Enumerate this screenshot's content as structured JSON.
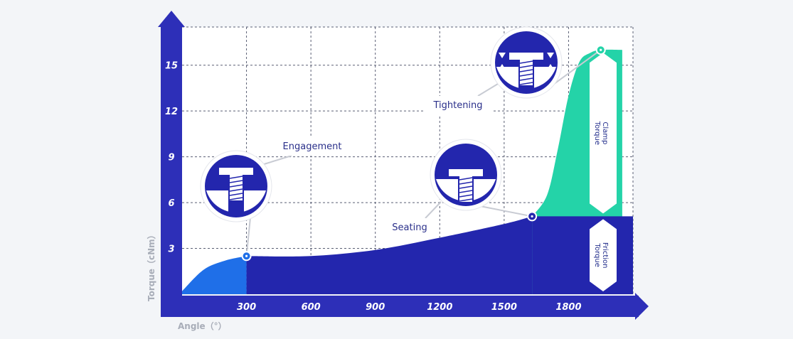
{
  "chart_data": {
    "type": "area",
    "xlabel": "Angle（°）",
    "ylabel": "Torque（cNm）",
    "x_ticks": [
      300,
      600,
      900,
      1200,
      1500,
      1800
    ],
    "y_ticks": [
      3,
      6,
      9,
      12,
      15
    ],
    "xlim": [
      0,
      2100
    ],
    "ylim": [
      0,
      17.5
    ],
    "grid": true,
    "series": [
      {
        "values_x": [
          0,
          100,
          200,
          300
        ],
        "values_y": [
          0.2,
          1.6,
          2.2,
          2.5
        ]
      },
      {
        "values_x": [
          300,
          600,
          900,
          1200,
          1500,
          1630
        ],
        "values_y": [
          2.5,
          2.5,
          2.9,
          3.7,
          4.6,
          5.1
        ]
      },
      {
        "values_x": [
          1630,
          1700,
          1750,
          1800,
          1850,
          1900,
          1950,
          2050
        ],
        "values_y": [
          5.1,
          6.5,
          9.5,
          13.0,
          15.2,
          15.8,
          16.0,
          16.0
        ]
      }
    ],
    "markers": [
      {
        "x": 300,
        "y": 2.5
      },
      {
        "x": 1630,
        "y": 5.1
      },
      {
        "x": 1950,
        "y": 16.0
      }
    ],
    "annotations": [
      {
        "label": "Engagement",
        "x": 300,
        "y": 2.5
      },
      {
        "label": "Seating",
        "x": 1630,
        "y": 5.1
      },
      {
        "label": "Tightening",
        "x": 1950,
        "y": 16.0
      }
    ],
    "bands": [
      {
        "label_line1": "Friction",
        "label_line2": "Torque",
        "y_from": 0,
        "y_to": 5.1
      },
      {
        "label_line1": "Clamp",
        "label_line2": "Torque",
        "y_from": 5.1,
        "y_to": 16.0
      }
    ],
    "colors": {
      "axis": "#2d2fb8",
      "fill_engagement": "#1f6fe8",
      "fill_seating": "#2326ad",
      "fill_clamp": "#24d3a8",
      "grid": "#5a5f74",
      "background": "#f3f5f8"
    }
  }
}
